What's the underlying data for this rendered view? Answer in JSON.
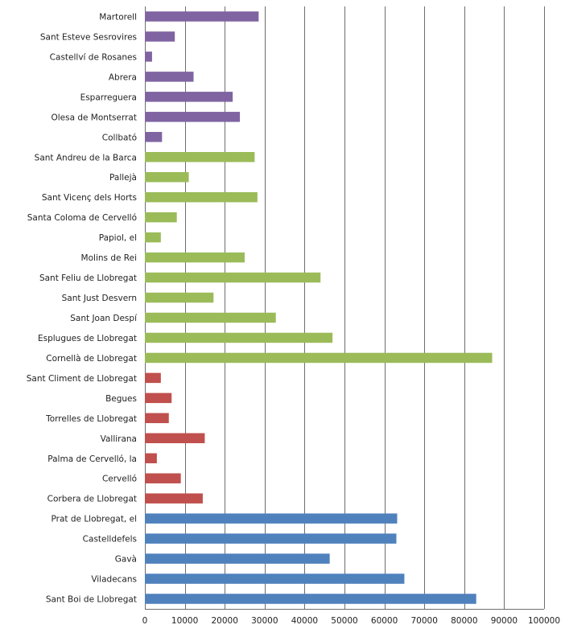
{
  "chart_data": {
    "type": "bar",
    "orientation": "horizontal",
    "title": "",
    "xlabel": "",
    "ylabel": "",
    "xlim": [
      0,
      100000
    ],
    "x_ticks": [
      "0",
      "10000",
      "20000",
      "30000",
      "40000",
      "50000",
      "60000",
      "70000",
      "80000",
      "90000",
      "100000"
    ],
    "grid": "vertical major gridlines",
    "legend": "none",
    "colors": {
      "purple": "#8064a2",
      "green": "#9bbb59",
      "red": "#c0504d",
      "blue": "#4f81bd"
    },
    "bars": [
      {
        "label": "Martorell",
        "value": 28500,
        "color": "purple"
      },
      {
        "label": "Sant Esteve Sesrovires",
        "value": 7500,
        "color": "purple"
      },
      {
        "label": "Castellví de Rosanes",
        "value": 1800,
        "color": "purple"
      },
      {
        "label": "Abrera",
        "value": 12200,
        "color": "purple"
      },
      {
        "label": "Esparreguera",
        "value": 22000,
        "color": "purple"
      },
      {
        "label": "Olesa de Montserrat",
        "value": 23800,
        "color": "purple"
      },
      {
        "label": "Collbató",
        "value": 4300,
        "color": "purple"
      },
      {
        "label": "Sant Andreu de la Barca",
        "value": 27500,
        "color": "green"
      },
      {
        "label": "Pallejà",
        "value": 11000,
        "color": "green"
      },
      {
        "label": "Sant Vicenç dels Horts",
        "value": 28200,
        "color": "green"
      },
      {
        "label": "Santa Coloma de Cervelló",
        "value": 8000,
        "color": "green"
      },
      {
        "label": "Papiol, el",
        "value": 4000,
        "color": "green"
      },
      {
        "label": "Molins de Rei",
        "value": 25000,
        "color": "green"
      },
      {
        "label": "Sant Feliu de Llobregat",
        "value": 44000,
        "color": "green"
      },
      {
        "label": "Sant Just Desvern",
        "value": 17200,
        "color": "green"
      },
      {
        "label": "Sant Joan Despí",
        "value": 32800,
        "color": "green"
      },
      {
        "label": "Esplugues de Llobregat",
        "value": 47000,
        "color": "green"
      },
      {
        "label": "Cornellà de Llobregat",
        "value": 87000,
        "color": "green"
      },
      {
        "label": "Sant Climent de Llobregat",
        "value": 4000,
        "color": "red"
      },
      {
        "label": "Begues",
        "value": 6700,
        "color": "red"
      },
      {
        "label": "Torrelles de Llobregat",
        "value": 6000,
        "color": "red"
      },
      {
        "label": "Vallirana",
        "value": 15000,
        "color": "red"
      },
      {
        "label": "Palma de Cervelló, la",
        "value": 3000,
        "color": "red"
      },
      {
        "label": "Cervelló",
        "value": 9000,
        "color": "red"
      },
      {
        "label": "Corbera de Llobregat",
        "value": 14500,
        "color": "red"
      },
      {
        "label": "Prat de Llobregat, el",
        "value": 63200,
        "color": "blue"
      },
      {
        "label": "Castelldefels",
        "value": 63000,
        "color": "blue"
      },
      {
        "label": "Gavà",
        "value": 46300,
        "color": "blue"
      },
      {
        "label": "Viladecans",
        "value": 65000,
        "color": "blue"
      },
      {
        "label": "Sant Boi de Llobregat",
        "value": 83000,
        "color": "blue"
      }
    ]
  }
}
